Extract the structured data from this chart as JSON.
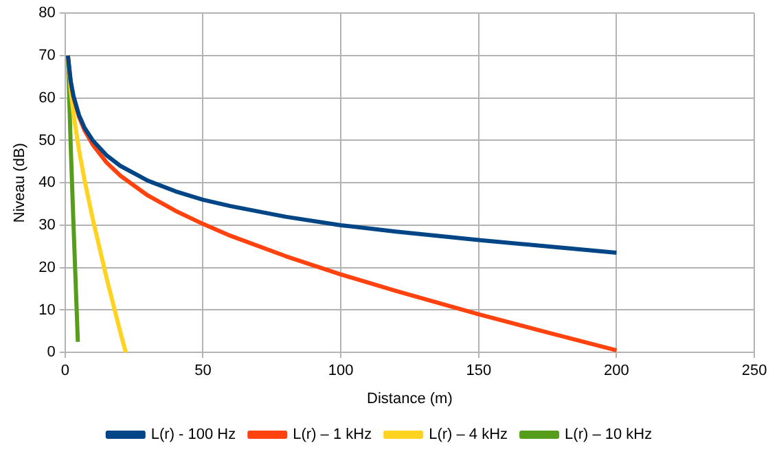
{
  "chart_data": {
    "type": "line",
    "xlabel": "Distance (m)",
    "ylabel": "Niveau (dB)",
    "xlim": [
      0,
      250
    ],
    "xticks": [
      0,
      50,
      100,
      150,
      200,
      250
    ],
    "ylim": [
      0,
      80
    ],
    "yticks": [
      0,
      10,
      20,
      30,
      40,
      50,
      60,
      70,
      80
    ],
    "grid": true,
    "legend": "bottom",
    "marker": "none",
    "line_style": "solid",
    "series": [
      {
        "name": "L(r) - 100 Hz",
        "color": "#004586",
        "x": [
          1,
          2,
          3,
          5,
          7,
          10,
          15,
          20,
          30,
          40,
          50,
          60,
          80,
          100,
          120,
          150,
          175,
          200
        ],
        "values": [
          70,
          64,
          60.5,
          56,
          53,
          50,
          46.5,
          44,
          40.5,
          38,
          36,
          34.5,
          32,
          30,
          28.5,
          26.5,
          25,
          23.5
        ]
      },
      {
        "name": "L(r) – 1 kHz",
        "color": "#ff420e",
        "x": [
          1,
          2,
          3,
          5,
          7,
          10,
          15,
          20,
          30,
          40,
          50,
          60,
          80,
          100,
          120,
          150,
          175,
          200
        ],
        "values": [
          70,
          63.8,
          60.2,
          55.6,
          52.4,
          49,
          44.8,
          41.7,
          37,
          33.4,
          30.3,
          27.5,
          22.7,
          18.4,
          14.5,
          9,
          4.7,
          0.5
        ]
      },
      {
        "name": "L(r) – 4 kHz",
        "color": "#ffd320",
        "x": [
          1,
          2,
          3,
          5,
          7,
          10,
          15,
          20,
          22
        ],
        "values": [
          70,
          62,
          56.3,
          47.8,
          40.7,
          31.5,
          17.6,
          4.8,
          0
        ]
      },
      {
        "name": "L(r) – 10 kHz",
        "color": "#579d1c",
        "x": [
          1,
          2,
          3,
          4,
          4.6
        ],
        "values": [
          70,
          49,
          30.5,
          13,
          2.5
        ]
      }
    ]
  }
}
